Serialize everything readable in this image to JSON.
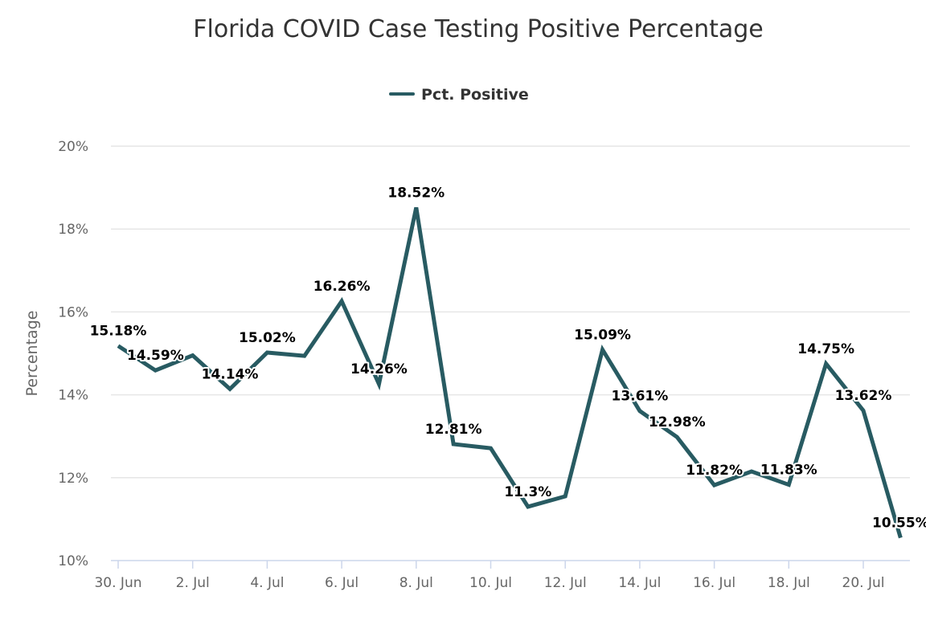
{
  "chart_data": {
    "type": "line",
    "title": "Florida COVID Case Testing Positive Percentage",
    "ylabel": "Percentage",
    "xlabel": "",
    "legend": {
      "position": "top-center"
    },
    "grid": {
      "y": true,
      "x": false
    },
    "ylim": [
      10,
      20
    ],
    "yticks": [
      "10%",
      "12%",
      "14%",
      "16%",
      "18%",
      "20%"
    ],
    "ytick_values": [
      10,
      12,
      14,
      16,
      18,
      20
    ],
    "x": [
      "30. Jun",
      "1. Jul",
      "2. Jul",
      "3. Jul",
      "4. Jul",
      "5. Jul",
      "6. Jul",
      "7. Jul",
      "8. Jul",
      "9. Jul",
      "10. Jul",
      "11. Jul",
      "12. Jul",
      "13. Jul",
      "14. Jul",
      "15. Jul",
      "16. Jul",
      "17. Jul",
      "18. Jul",
      "19. Jul",
      "20. Jul",
      "21. Jul"
    ],
    "xticks": [
      "30. Jun",
      "2. Jul",
      "4. Jul",
      "6. Jul",
      "8. Jul",
      "10. Jul",
      "12. Jul",
      "14. Jul",
      "16. Jul",
      "18. Jul",
      "20. Jul"
    ],
    "series": [
      {
        "name": "Pct. Positive",
        "color": "#285b62",
        "values": [
          15.18,
          14.59,
          14.95,
          14.14,
          15.02,
          14.94,
          16.26,
          14.26,
          18.52,
          12.81,
          12.71,
          11.3,
          11.55,
          15.09,
          13.61,
          12.98,
          11.82,
          12.15,
          11.83,
          14.75,
          13.62,
          10.55
        ],
        "data_labels": [
          "15.18%",
          "14.59%",
          null,
          "14.14%",
          "15.02%",
          null,
          "16.26%",
          "14.26%",
          "18.52%",
          "12.81%",
          null,
          "11.3%",
          null,
          "15.09%",
          "13.61%",
          "12.98%",
          "11.82%",
          null,
          "11.83%",
          "14.75%",
          "13.62%",
          "10.55%"
        ]
      }
    ]
  }
}
